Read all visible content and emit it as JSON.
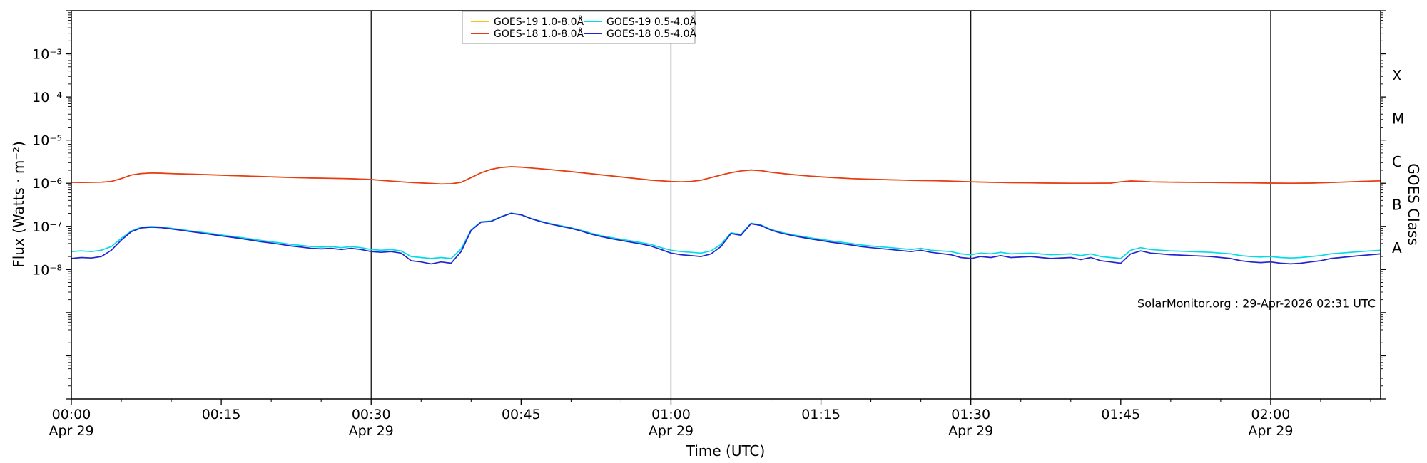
{
  "chart_data": {
    "type": "line",
    "title": "",
    "xlabel": "Time (UTC)",
    "ylabel_left": "Flux (Watts · m⁻²)",
    "ylabel_right": "GOES Class",
    "annotation": "SolarMonitor.org : 29-Apr-2026 02:31 UTC",
    "x_unit": "minutes after 00:00 UTC on Apr 29",
    "xlim": [
      0,
      131
    ],
    "ylim_log10": [
      -11,
      -2
    ],
    "grid": "vertical-day-lines-only",
    "x_ticks": [
      {
        "t": 0,
        "label": "00:00",
        "date": "Apr 29"
      },
      {
        "t": 15,
        "label": "00:15"
      },
      {
        "t": 30,
        "label": "00:30",
        "date": "Apr 29"
      },
      {
        "t": 45,
        "label": "00:45"
      },
      {
        "t": 60,
        "label": "01:00",
        "date": "Apr 29"
      },
      {
        "t": 75,
        "label": "01:15"
      },
      {
        "t": 90,
        "label": "01:30",
        "date": "Apr 29"
      },
      {
        "t": 105,
        "label": "01:45"
      },
      {
        "t": 120,
        "label": "02:00",
        "date": "Apr 29"
      }
    ],
    "y_ticks": [
      {
        "exp": -3,
        "label": "10⁻³"
      },
      {
        "exp": -4,
        "label": "10⁻⁴"
      },
      {
        "exp": -5,
        "label": "10⁻⁵"
      },
      {
        "exp": -6,
        "label": "10⁻⁶"
      },
      {
        "exp": -7,
        "label": "10⁻⁷"
      },
      {
        "exp": -8,
        "label": "10⁻⁸"
      }
    ],
    "goes_class_ticks": [
      {
        "label": "X",
        "log_center": -3.5
      },
      {
        "label": "M",
        "log_center": -4.5
      },
      {
        "label": "C",
        "log_center": -5.5
      },
      {
        "label": "B",
        "log_center": -6.5
      },
      {
        "label": "A",
        "log_center": -7.5
      }
    ],
    "vertical_lines_t": [
      30,
      60,
      90,
      120
    ],
    "legend": {
      "position": "top-center",
      "columns": 2
    },
    "series": [
      {
        "name": "GOES-19 1.0-8.0Å",
        "color": "#f2c40e",
        "scale": 1e-06,
        "t": [
          0,
          1,
          2,
          3,
          4,
          5,
          6,
          7,
          8,
          9,
          10,
          12,
          14,
          16,
          18,
          20,
          22,
          24,
          26,
          28,
          30,
          32,
          34,
          36,
          37,
          38,
          39,
          40,
          41,
          42,
          43,
          44,
          45,
          46,
          48,
          50,
          52,
          54,
          56,
          58,
          60,
          61,
          62,
          63,
          64,
          65,
          66,
          67,
          68,
          69,
          70,
          72,
          74,
          76,
          78,
          80,
          82,
          84,
          86,
          88,
          90,
          92,
          94,
          96,
          98,
          100,
          102,
          104,
          105,
          106,
          107,
          108,
          110,
          112,
          114,
          116,
          118,
          120,
          122,
          124,
          126,
          128,
          130,
          131
        ],
        "flux": [
          1.05,
          1.04,
          1.05,
          1.06,
          1.1,
          1.28,
          1.55,
          1.68,
          1.73,
          1.71,
          1.67,
          1.62,
          1.57,
          1.51,
          1.46,
          1.41,
          1.36,
          1.32,
          1.3,
          1.27,
          1.22,
          1.12,
          1.04,
          0.99,
          0.96,
          0.97,
          1.05,
          1.35,
          1.75,
          2.1,
          2.32,
          2.42,
          2.36,
          2.26,
          2.06,
          1.86,
          1.66,
          1.48,
          1.32,
          1.18,
          1.1,
          1.08,
          1.1,
          1.18,
          1.35,
          1.55,
          1.76,
          1.93,
          2.03,
          1.96,
          1.8,
          1.6,
          1.46,
          1.36,
          1.28,
          1.24,
          1.2,
          1.17,
          1.15,
          1.12,
          1.08,
          1.05,
          1.03,
          1.02,
          1.01,
          1.0,
          1.0,
          1.01,
          1.08,
          1.13,
          1.11,
          1.08,
          1.06,
          1.05,
          1.04,
          1.03,
          1.02,
          1.01,
          1.0,
          1.01,
          1.04,
          1.08,
          1.12,
          1.14
        ]
      },
      {
        "name": "GOES-18 1.0-8.0Å",
        "color": "#e8391c",
        "scale": 1e-06,
        "t": [
          0,
          1,
          2,
          3,
          4,
          5,
          6,
          7,
          8,
          9,
          10,
          12,
          14,
          16,
          18,
          20,
          22,
          24,
          26,
          28,
          30,
          32,
          34,
          36,
          37,
          38,
          39,
          40,
          41,
          42,
          43,
          44,
          45,
          46,
          48,
          50,
          52,
          54,
          56,
          58,
          60,
          61,
          62,
          63,
          64,
          65,
          66,
          67,
          68,
          69,
          70,
          72,
          74,
          76,
          78,
          80,
          82,
          84,
          86,
          88,
          90,
          92,
          94,
          96,
          98,
          100,
          102,
          104,
          105,
          106,
          107,
          108,
          110,
          112,
          114,
          116,
          118,
          120,
          122,
          124,
          126,
          128,
          130,
          131
        ],
        "flux": [
          1.05,
          1.04,
          1.05,
          1.06,
          1.1,
          1.28,
          1.55,
          1.68,
          1.73,
          1.71,
          1.67,
          1.62,
          1.57,
          1.51,
          1.46,
          1.41,
          1.36,
          1.32,
          1.3,
          1.27,
          1.22,
          1.12,
          1.04,
          0.99,
          0.96,
          0.97,
          1.05,
          1.35,
          1.75,
          2.1,
          2.32,
          2.42,
          2.36,
          2.26,
          2.06,
          1.86,
          1.66,
          1.48,
          1.32,
          1.18,
          1.1,
          1.08,
          1.1,
          1.18,
          1.35,
          1.55,
          1.76,
          1.93,
          2.03,
          1.96,
          1.8,
          1.6,
          1.46,
          1.36,
          1.28,
          1.24,
          1.2,
          1.17,
          1.15,
          1.12,
          1.08,
          1.05,
          1.03,
          1.02,
          1.01,
          1.0,
          1.0,
          1.01,
          1.08,
          1.13,
          1.11,
          1.08,
          1.06,
          1.05,
          1.04,
          1.03,
          1.02,
          1.01,
          1.0,
          1.01,
          1.04,
          1.08,
          1.12,
          1.14
        ]
      },
      {
        "name": "GOES-19 0.5-4.0Å",
        "color": "#00dde6",
        "scale": 1e-08,
        "t": [
          0,
          1,
          2,
          3,
          4,
          5,
          6,
          7,
          8,
          9,
          10,
          11,
          12,
          13,
          14,
          15,
          16,
          17,
          18,
          19,
          20,
          21,
          22,
          23,
          24,
          25,
          26,
          27,
          28,
          29,
          30,
          31,
          32,
          33,
          34,
          35,
          36,
          37,
          38,
          39,
          40,
          41,
          42,
          43,
          44,
          45,
          46,
          47,
          48,
          49,
          50,
          51,
          52,
          53,
          54,
          55,
          56,
          57,
          58,
          59,
          60,
          61,
          62,
          63,
          64,
          65,
          66,
          67,
          68,
          69,
          70,
          71,
          72,
          73,
          74,
          75,
          76,
          77,
          78,
          79,
          80,
          82,
          84,
          85,
          86,
          88,
          89,
          90,
          91,
          92,
          93,
          94,
          96,
          98,
          100,
          101,
          102,
          103,
          104,
          105,
          106,
          107,
          108,
          109,
          110,
          112,
          114,
          115,
          116,
          117,
          118,
          119,
          120,
          121,
          122,
          123,
          124,
          125,
          126,
          127,
          128,
          129,
          130,
          131
        ],
        "flux": [
          2.6,
          2.7,
          2.6,
          2.8,
          3.4,
          5.3,
          7.8,
          9.5,
          9.9,
          9.6,
          9.0,
          8.4,
          7.8,
          7.3,
          6.8,
          6.3,
          5.9,
          5.5,
          5.1,
          4.7,
          4.4,
          4.1,
          3.8,
          3.6,
          3.4,
          3.3,
          3.4,
          3.2,
          3.4,
          3.2,
          2.9,
          2.8,
          2.9,
          2.7,
          2.0,
          1.9,
          1.8,
          1.9,
          1.8,
          3.0,
          8.3,
          12.8,
          13.3,
          16.8,
          20.3,
          18.8,
          15.3,
          13.1,
          11.5,
          10.3,
          9.3,
          8.1,
          6.9,
          6.1,
          5.5,
          5.0,
          4.6,
          4.2,
          3.8,
          3.2,
          2.8,
          2.6,
          2.5,
          2.4,
          2.7,
          3.8,
          7.1,
          6.5,
          11.8,
          10.8,
          8.5,
          7.3,
          6.5,
          5.9,
          5.4,
          5.0,
          4.6,
          4.3,
          4.0,
          3.7,
          3.5,
          3.2,
          2.9,
          3.1,
          2.8,
          2.6,
          2.3,
          2.2,
          2.4,
          2.3,
          2.5,
          2.3,
          2.4,
          2.2,
          2.3,
          2.1,
          2.3,
          2.0,
          1.9,
          1.8,
          2.8,
          3.2,
          2.9,
          2.8,
          2.7,
          2.6,
          2.5,
          2.4,
          2.3,
          2.1,
          2.0,
          1.95,
          2.0,
          1.9,
          1.85,
          1.9,
          2.0,
          2.1,
          2.3,
          2.4,
          2.5,
          2.6,
          2.7,
          2.8
        ]
      },
      {
        "name": "GOES-18 0.5-4.0Å",
        "color": "#2424cf",
        "scale": 1e-08,
        "t": [
          0,
          1,
          2,
          3,
          4,
          5,
          6,
          7,
          8,
          9,
          10,
          11,
          12,
          13,
          14,
          15,
          16,
          17,
          18,
          19,
          20,
          21,
          22,
          23,
          24,
          25,
          26,
          27,
          28,
          29,
          30,
          31,
          32,
          33,
          34,
          35,
          36,
          37,
          38,
          39,
          40,
          41,
          42,
          43,
          44,
          45,
          46,
          47,
          48,
          49,
          50,
          51,
          52,
          53,
          54,
          55,
          56,
          57,
          58,
          59,
          60,
          61,
          62,
          63,
          64,
          65,
          66,
          67,
          68,
          69,
          70,
          71,
          72,
          73,
          74,
          75,
          76,
          77,
          78,
          79,
          80,
          82,
          84,
          85,
          86,
          88,
          89,
          90,
          91,
          92,
          93,
          94,
          96,
          98,
          100,
          101,
          102,
          103,
          104,
          105,
          106,
          107,
          108,
          109,
          110,
          112,
          114,
          115,
          116,
          117,
          118,
          119,
          120,
          121,
          122,
          123,
          124,
          125,
          126,
          127,
          128,
          129,
          130,
          131
        ],
        "flux": [
          1.8,
          1.9,
          1.85,
          2.0,
          2.8,
          4.8,
          7.5,
          9.2,
          9.6,
          9.3,
          8.7,
          8.1,
          7.5,
          7.0,
          6.5,
          6.0,
          5.6,
          5.2,
          4.8,
          4.4,
          4.1,
          3.8,
          3.5,
          3.3,
          3.1,
          3.0,
          3.1,
          2.9,
          3.1,
          2.9,
          2.6,
          2.5,
          2.6,
          2.4,
          1.6,
          1.5,
          1.35,
          1.5,
          1.4,
          2.6,
          8.0,
          12.5,
          13.0,
          16.5,
          20.0,
          18.5,
          15.0,
          12.8,
          11.2,
          10.0,
          9.0,
          7.8,
          6.6,
          5.8,
          5.2,
          4.7,
          4.3,
          3.9,
          3.5,
          2.9,
          2.4,
          2.2,
          2.1,
          2.0,
          2.3,
          3.4,
          6.8,
          6.2,
          11.5,
          10.5,
          8.2,
          7.0,
          6.2,
          5.6,
          5.1,
          4.7,
          4.3,
          4.0,
          3.7,
          3.4,
          3.2,
          2.9,
          2.6,
          2.8,
          2.5,
          2.2,
          1.9,
          1.8,
          2.0,
          1.9,
          2.1,
          1.9,
          2.0,
          1.8,
          1.9,
          1.7,
          1.9,
          1.6,
          1.5,
          1.4,
          2.3,
          2.7,
          2.4,
          2.3,
          2.2,
          2.1,
          2.0,
          1.9,
          1.8,
          1.6,
          1.5,
          1.45,
          1.5,
          1.4,
          1.35,
          1.4,
          1.5,
          1.6,
          1.8,
          1.9,
          2.0,
          2.1,
          2.2,
          2.3
        ]
      }
    ]
  }
}
